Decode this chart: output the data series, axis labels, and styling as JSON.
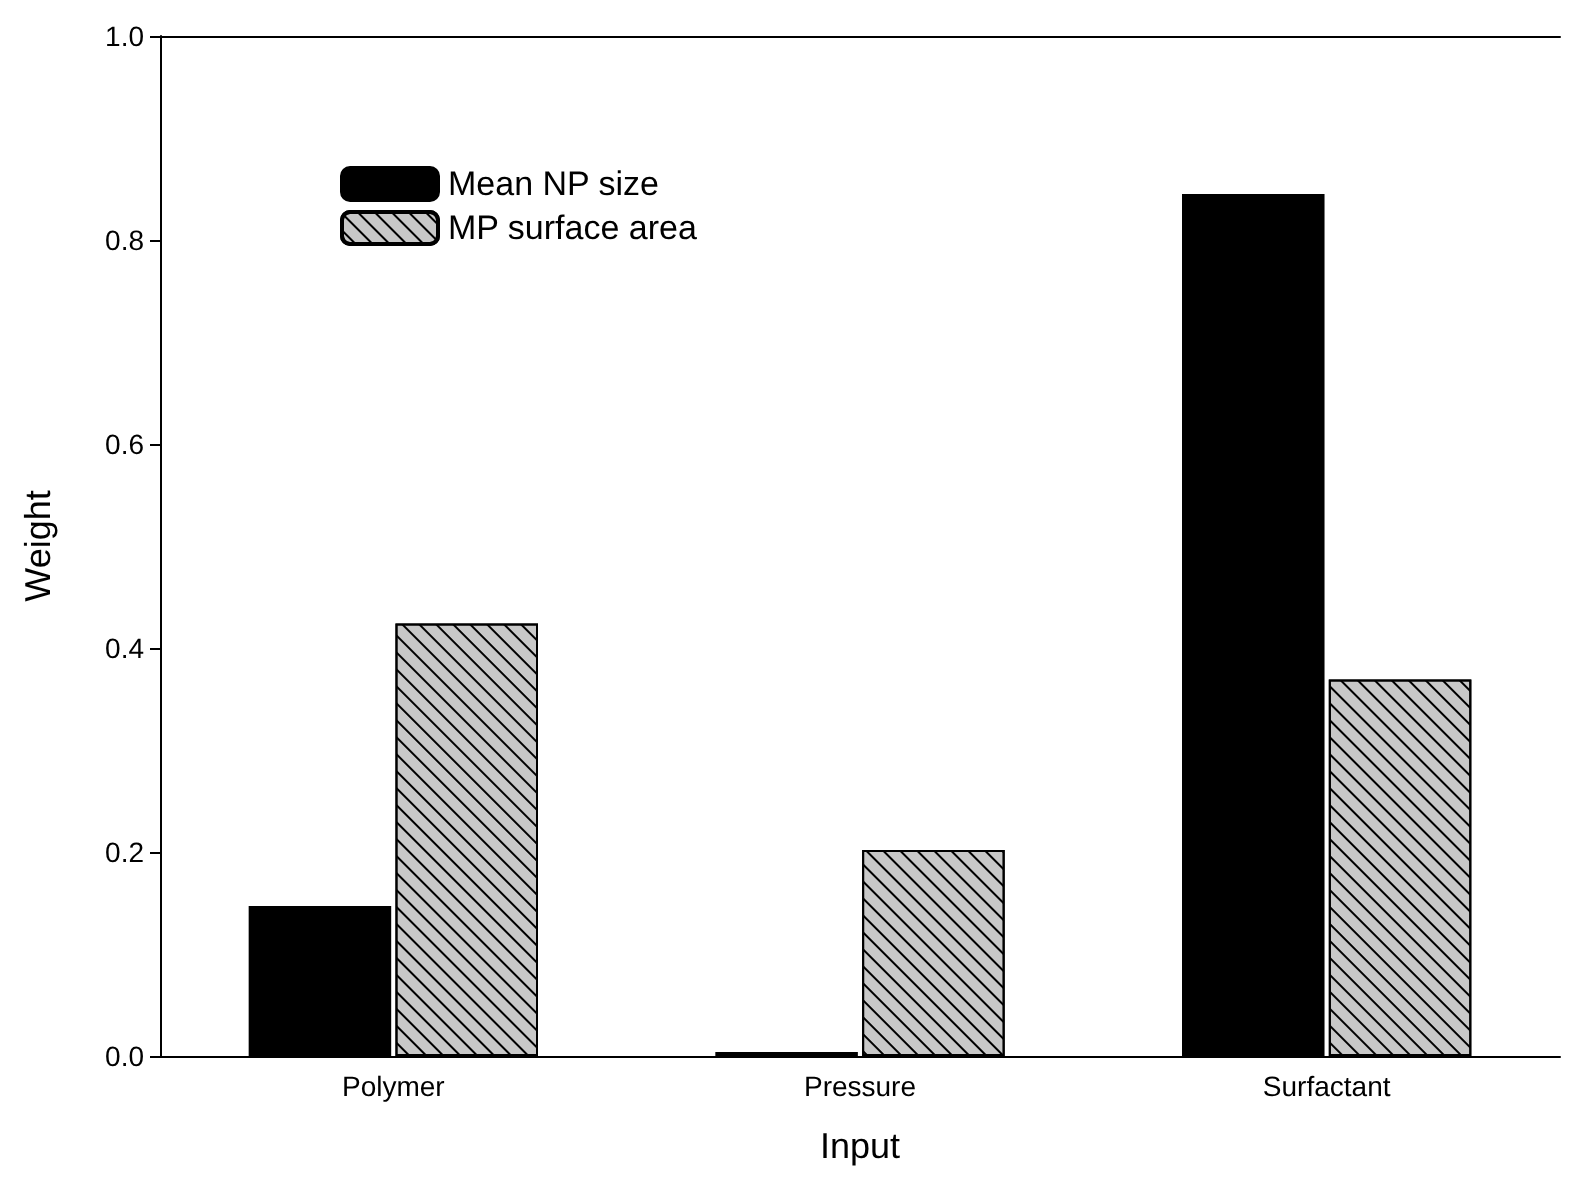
{
  "chart_data": {
    "type": "bar",
    "xlabel": "Input",
    "ylabel": "Weight",
    "categories": [
      "Polymer",
      "Pressure",
      "Surfactant"
    ],
    "series": [
      {
        "name": "Mean NP size",
        "color": "#000000",
        "values": [
          0.147,
          0.004,
          0.845
        ]
      },
      {
        "name": "MP surface area",
        "color": "#c8c8c8",
        "values": [
          0.424,
          0.202,
          0.369
        ]
      }
    ],
    "ylim": [
      0,
      1
    ],
    "yticks": [
      {
        "value": 0,
        "label": "0.0"
      },
      0.2,
      0.4,
      0.6,
      0.8,
      {
        "value": 1,
        "label": "1.0"
      }
    ],
    "grid": false,
    "legend": "top left"
  }
}
